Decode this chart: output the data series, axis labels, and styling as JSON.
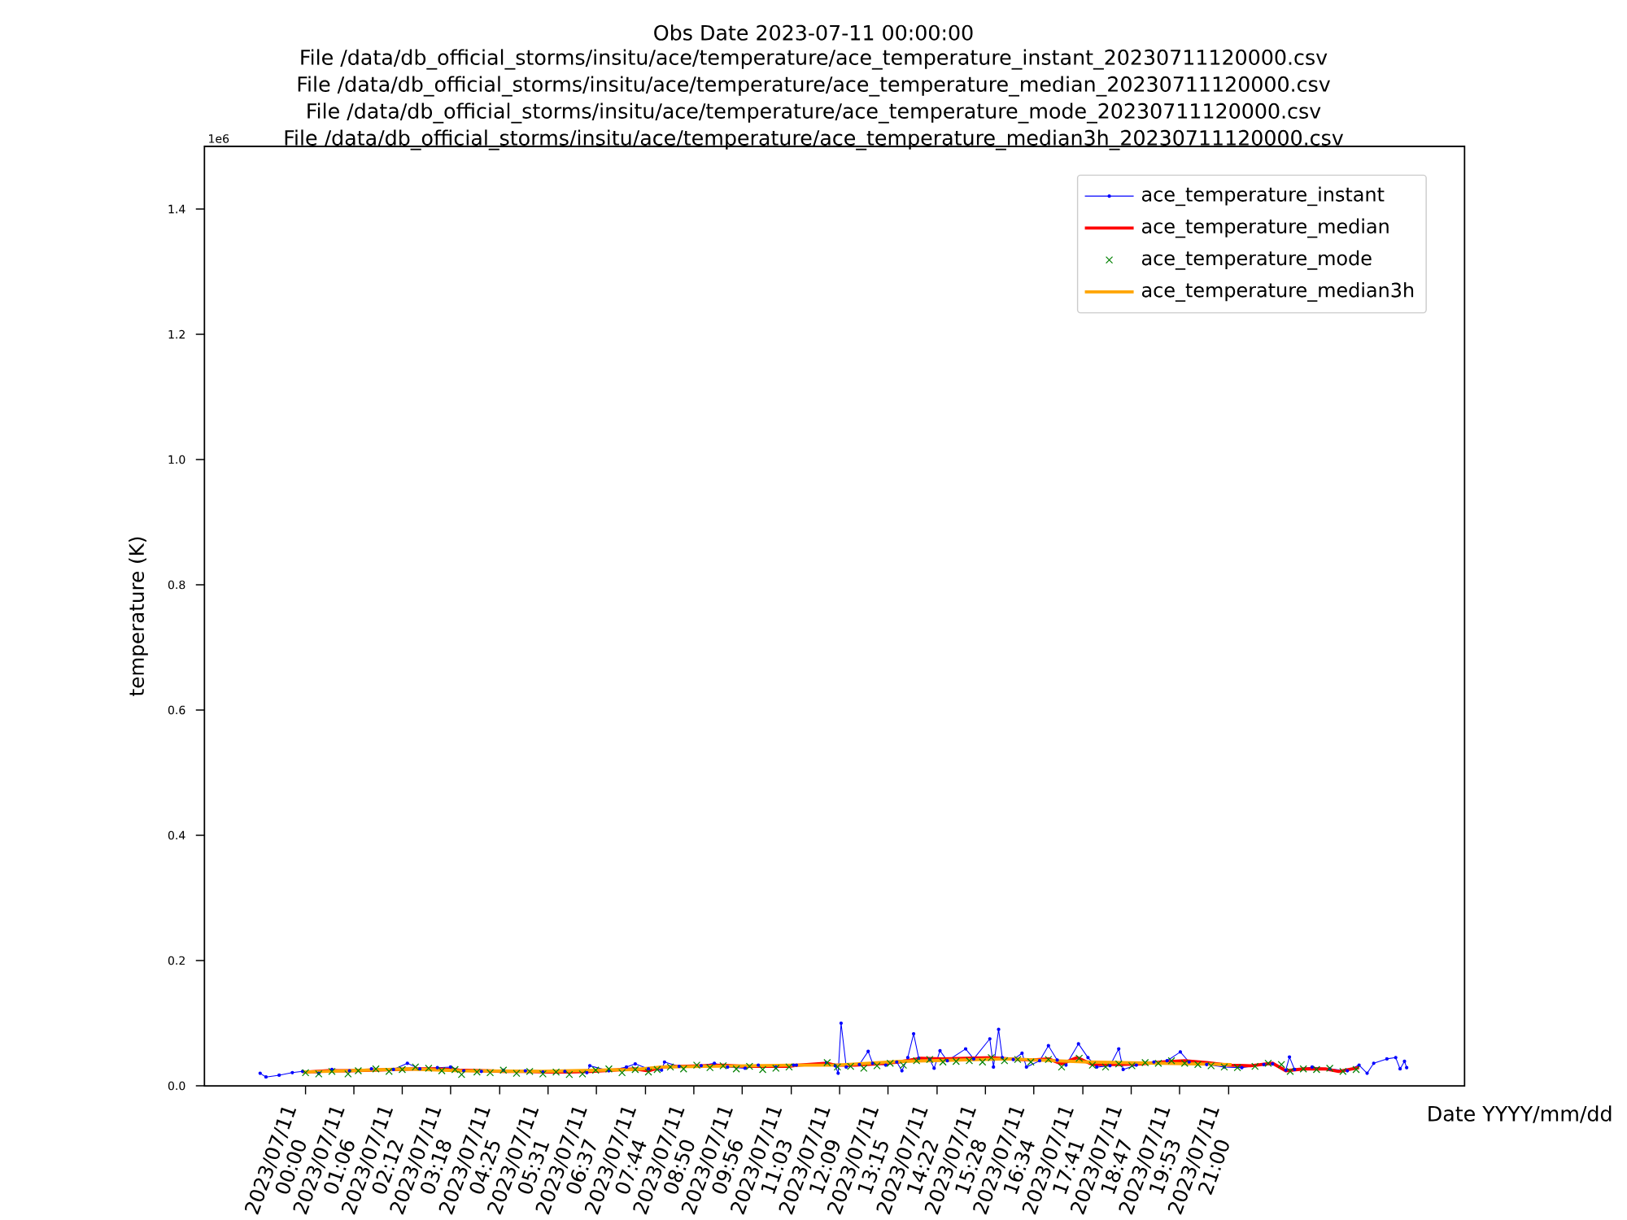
{
  "chart_data": {
    "type": "line",
    "title": "Obs Date 2023-07-11 00:00:00",
    "annotations": [
      "File /data/db_official_storms/insitu/ace/temperature/ace_temperature_instant_20230711120000.csv",
      "File /data/db_official_storms/insitu/ace/temperature/ace_temperature_median_20230711120000.csv",
      "File /data/db_official_storms/insitu/ace/temperature/ace_temperature_mode_20230711120000.csv",
      "File /data/db_official_storms/insitu/ace/temperature/ace_temperature_median3h_20230711120000.csv",
      "1e6"
    ],
    "xlabel": "Date YYYY/mm/dd",
    "ylabel": "temperature (K)",
    "xlim": [
      "2023-07-10T21:42",
      "2023-07-12T02:22"
    ],
    "ylim": [
      0,
      1.5
    ],
    "xticks": [
      {
        "value": "2023-07-11T00:00",
        "label": "2023/07/11 00:00"
      },
      {
        "value": "2023-07-11T01:06",
        "label": "2023/07/11 01:06"
      },
      {
        "value": "2023-07-11T02:12",
        "label": "2023/07/11 02:12"
      },
      {
        "value": "2023-07-11T03:18",
        "label": "2023/07/11 03:18"
      },
      {
        "value": "2023-07-11T04:25",
        "label": "2023/07/11 04:25"
      },
      {
        "value": "2023-07-11T05:31",
        "label": "2023/07/11 05:31"
      },
      {
        "value": "2023-07-11T06:37",
        "label": "2023/07/11 06:37"
      },
      {
        "value": "2023-07-11T07:44",
        "label": "2023/07/11 07:44"
      },
      {
        "value": "2023-07-11T08:50",
        "label": "2023/07/11 08:50"
      },
      {
        "value": "2023-07-11T09:56",
        "label": "2023/07/11 09:56"
      },
      {
        "value": "2023-07-11T11:03",
        "label": "2023/07/11 11:03"
      },
      {
        "value": "2023-07-11T12:09",
        "label": "2023/07/11 12:09"
      },
      {
        "value": "2023-07-11T13:15",
        "label": "2023/07/11 13:15"
      },
      {
        "value": "2023-07-11T14:22",
        "label": "2023/07/11 14:22"
      },
      {
        "value": "2023-07-11T15:28",
        "label": "2023/07/11 15:28"
      },
      {
        "value": "2023-07-11T16:34",
        "label": "2023/07/11 16:34"
      },
      {
        "value": "2023-07-11T17:41",
        "label": "2023/07/11 17:41"
      },
      {
        "value": "2023-07-11T18:47",
        "label": "2023/07/11 18:47"
      },
      {
        "value": "2023-07-11T19:53",
        "label": "2023/07/11 19:53"
      },
      {
        "value": "2023-07-11T21:00",
        "label": "2023/07/11 21:00"
      }
    ],
    "yticks": [
      {
        "value": 0,
        "label": "0.0"
      },
      0.2,
      0.4,
      0.6,
      0.8,
      {
        "value": 1,
        "label": "1.0"
      },
      1.2,
      1.4
    ],
    "legend": "top right",
    "series": [
      {
        "name": "ace_temperature_instant",
        "marker": "circle",
        "color": "#0000ff",
        "x": [
          "2023-07-10T22:58",
          "2023-07-10T23:06",
          "2023-07-10T23:24",
          "2023-07-10T23:42",
          "2023-07-10T23:56",
          "2023-07-11T00:18",
          "2023-07-11T00:36",
          "2023-07-11T01:00",
          "2023-07-11T01:30",
          "2023-07-11T02:00",
          "2023-07-11T02:19",
          "2023-07-11T02:36",
          "2023-07-11T03:00",
          "2023-07-11T03:18",
          "2023-07-11T03:36",
          "2023-07-11T04:00",
          "2023-07-11T04:30",
          "2023-07-11T05:00",
          "2023-07-11T05:24",
          "2023-07-11T05:54",
          "2023-07-11T06:24",
          "2023-07-11T06:28",
          "2023-07-11T06:54",
          "2023-07-11T07:18",
          "2023-07-11T07:30",
          "2023-07-11T07:48",
          "2023-07-11T08:06",
          "2023-07-11T08:10",
          "2023-07-11T08:30",
          "2023-07-11T09:00",
          "2023-07-11T09:18",
          "2023-07-11T09:36",
          "2023-07-11T10:00",
          "2023-07-11T10:18",
          "2023-07-11T10:42",
          "2023-07-11T11:06",
          "2023-07-11T11:10",
          "2023-07-11T11:51",
          "2023-07-11T12:03",
          "2023-07-11T12:07",
          "2023-07-11T12:11",
          "2023-07-11T12:18",
          "2023-07-11T12:36",
          "2023-07-11T12:48",
          "2023-07-11T12:54",
          "2023-07-11T13:12",
          "2023-07-11T13:27",
          "2023-07-11T13:34",
          "2023-07-11T13:42",
          "2023-07-11T13:50",
          "2023-07-11T13:57",
          "2023-07-11T14:12",
          "2023-07-11T14:18",
          "2023-07-11T14:26",
          "2023-07-11T14:36",
          "2023-07-11T15:01",
          "2023-07-11T15:12",
          "2023-07-11T15:34",
          "2023-07-11T15:39",
          "2023-07-11T15:46",
          "2023-07-11T15:51",
          "2023-07-11T16:06",
          "2023-07-11T16:18",
          "2023-07-11T16:24",
          "2023-07-11T16:42",
          "2023-07-11T16:54",
          "2023-07-11T17:06",
          "2023-07-11T17:18",
          "2023-07-11T17:35",
          "2023-07-11T17:48",
          "2023-07-11T18:00",
          "2023-07-11T18:18",
          "2023-07-11T18:30",
          "2023-07-11T18:36",
          "2023-07-11T18:54",
          "2023-07-11T19:18",
          "2023-07-11T19:36",
          "2023-07-11T19:54",
          "2023-07-11T20:06",
          "2023-07-11T20:30",
          "2023-07-11T20:54",
          "2023-07-11T21:18",
          "2023-07-11T21:48",
          "2023-07-11T22:00",
          "2023-07-11T22:18",
          "2023-07-11T22:23",
          "2023-07-11T22:30",
          "2023-07-11T22:54",
          "2023-07-11T23:18",
          "2023-07-11T23:42",
          "2023-07-11T23:58",
          "2023-07-12T00:09",
          "2023-07-12T00:18",
          "2023-07-12T00:36",
          "2023-07-12T00:48",
          "2023-07-12T00:54",
          "2023-07-12T01:00",
          "2023-07-12T01:03"
        ],
        "values": [
          0.02,
          0.014,
          0.017,
          0.021,
          0.023,
          0.02,
          0.026,
          0.024,
          0.027,
          0.026,
          0.036,
          0.027,
          0.029,
          0.03,
          0.024,
          0.023,
          0.025,
          0.024,
          0.022,
          0.023,
          0.021,
          0.032,
          0.024,
          0.03,
          0.035,
          0.027,
          0.025,
          0.038,
          0.031,
          0.032,
          0.036,
          0.03,
          0.028,
          0.033,
          0.03,
          0.033,
          0.033,
          0.037,
          0.032,
          0.02,
          0.1,
          0.03,
          0.034,
          0.055,
          0.036,
          0.033,
          0.038,
          0.024,
          0.045,
          0.083,
          0.044,
          0.042,
          0.028,
          0.056,
          0.04,
          0.059,
          0.043,
          0.075,
          0.03,
          0.09,
          0.045,
          0.042,
          0.052,
          0.03,
          0.04,
          0.064,
          0.041,
          0.033,
          0.067,
          0.045,
          0.03,
          0.032,
          0.059,
          0.026,
          0.033,
          0.038,
          0.04,
          0.054,
          0.038,
          0.034,
          0.03,
          0.029,
          0.034,
          0.035,
          0.025,
          0.046,
          0.026,
          0.03,
          0.027,
          0.024,
          0.033,
          0.02,
          0.036,
          0.043,
          0.045,
          0.027,
          0.039,
          0.029
        ]
      },
      {
        "name": "ace_temperature_median",
        "color": "#ff0000",
        "x": [
          "2023-07-11T00:00",
          "2023-07-11T00:30",
          "2023-07-11T01:00",
          "2023-07-11T01:30",
          "2023-07-11T02:00",
          "2023-07-11T02:30",
          "2023-07-11T03:00",
          "2023-07-11T03:30",
          "2023-07-11T04:00",
          "2023-07-11T04:30",
          "2023-07-11T05:00",
          "2023-07-11T05:30",
          "2023-07-11T06:00",
          "2023-07-11T06:30",
          "2023-07-11T07:00",
          "2023-07-11T07:30",
          "2023-07-11T07:48",
          "2023-07-11T08:06",
          "2023-07-11T08:30",
          "2023-07-11T09:00",
          "2023-07-11T09:30",
          "2023-07-11T10:00",
          "2023-07-11T10:30",
          "2023-07-11T11:00",
          "2023-07-11T11:12",
          "2023-07-11T11:52",
          "2023-07-11T12:03",
          "2023-07-11T12:30",
          "2023-07-11T13:00",
          "2023-07-11T13:30",
          "2023-07-11T14:00",
          "2023-07-11T14:30",
          "2023-07-11T15:00",
          "2023-07-11T15:36",
          "2023-07-11T16:00",
          "2023-07-11T16:30",
          "2023-07-11T16:54",
          "2023-07-11T17:12",
          "2023-07-11T17:33",
          "2023-07-11T17:54",
          "2023-07-11T18:30",
          "2023-07-11T19:00",
          "2023-07-11T19:30",
          "2023-07-11T20:00",
          "2023-07-11T20:30",
          "2023-07-11T21:00",
          "2023-07-11T21:30",
          "2023-07-11T22:00",
          "2023-07-11T22:18",
          "2023-07-11T22:42",
          "2023-07-11T23:12",
          "2023-07-11T23:30",
          "2023-07-11T23:58"
        ],
        "values": [
          0.022,
          0.024,
          0.024,
          0.025,
          0.026,
          0.027,
          0.027,
          0.025,
          0.024,
          0.023,
          0.023,
          0.022,
          0.022,
          0.023,
          0.025,
          0.027,
          0.024,
          0.03,
          0.031,
          0.032,
          0.033,
          0.031,
          0.031,
          0.031,
          0.033,
          0.036,
          0.033,
          0.033,
          0.035,
          0.038,
          0.044,
          0.043,
          0.044,
          0.045,
          0.043,
          0.041,
          0.043,
          0.035,
          0.045,
          0.034,
          0.034,
          0.035,
          0.038,
          0.04,
          0.037,
          0.033,
          0.032,
          0.036,
          0.024,
          0.027,
          0.027,
          0.023,
          0.029
        ]
      },
      {
        "name": "ace_temperature_mode",
        "type": "scatter",
        "marker": "cross",
        "color": "#008000",
        "x": [
          "2023-07-11T00:00",
          "2023-07-11T00:18",
          "2023-07-11T00:36",
          "2023-07-11T00:58",
          "2023-07-11T01:12",
          "2023-07-11T01:36",
          "2023-07-11T01:54",
          "2023-07-11T02:12",
          "2023-07-11T02:30",
          "2023-07-11T02:48",
          "2023-07-11T03:06",
          "2023-07-11T03:24",
          "2023-07-11T03:33",
          "2023-07-11T03:54",
          "2023-07-11T04:12",
          "2023-07-11T04:30",
          "2023-07-11T04:48",
          "2023-07-11T05:06",
          "2023-07-11T05:24",
          "2023-07-11T05:42",
          "2023-07-11T06:00",
          "2023-07-11T06:18",
          "2023-07-11T06:36",
          "2023-07-11T06:54",
          "2023-07-11T07:12",
          "2023-07-11T07:30",
          "2023-07-11T07:48",
          "2023-07-11T08:00",
          "2023-07-11T08:18",
          "2023-07-11T08:36",
          "2023-07-11T08:54",
          "2023-07-11T09:12",
          "2023-07-11T09:30",
          "2023-07-11T09:48",
          "2023-07-11T10:06",
          "2023-07-11T10:24",
          "2023-07-11T10:42",
          "2023-07-11T11:00",
          "2023-07-11T11:52",
          "2023-07-11T12:06",
          "2023-07-11T12:24",
          "2023-07-11T12:42",
          "2023-07-11T13:00",
          "2023-07-11T13:18",
          "2023-07-11T13:36",
          "2023-07-11T13:54",
          "2023-07-11T14:12",
          "2023-07-11T14:30",
          "2023-07-11T14:48",
          "2023-07-11T15:06",
          "2023-07-11T15:24",
          "2023-07-11T15:36",
          "2023-07-11T15:54",
          "2023-07-11T16:12",
          "2023-07-11T16:30",
          "2023-07-11T16:54",
          "2023-07-11T17:12",
          "2023-07-11T17:36",
          "2023-07-11T17:54",
          "2023-07-11T18:12",
          "2023-07-11T18:30",
          "2023-07-11T18:48",
          "2023-07-11T19:06",
          "2023-07-11T19:24",
          "2023-07-11T19:42",
          "2023-07-11T20:00",
          "2023-07-11T20:18",
          "2023-07-11T20:36",
          "2023-07-11T20:54",
          "2023-07-11T21:12",
          "2023-07-11T21:36",
          "2023-07-11T21:54",
          "2023-07-11T22:12",
          "2023-07-11T22:24",
          "2023-07-11T22:42",
          "2023-07-11T23:00",
          "2023-07-11T23:18",
          "2023-07-11T23:36",
          "2023-07-11T23:54"
        ],
        "values": [
          0.021,
          0.019,
          0.023,
          0.019,
          0.024,
          0.027,
          0.023,
          0.026,
          0.03,
          0.028,
          0.024,
          0.026,
          0.018,
          0.022,
          0.021,
          0.025,
          0.02,
          0.023,
          0.019,
          0.022,
          0.018,
          0.019,
          0.025,
          0.027,
          0.021,
          0.026,
          0.022,
          0.026,
          0.03,
          0.027,
          0.033,
          0.029,
          0.032,
          0.027,
          0.031,
          0.026,
          0.028,
          0.03,
          0.037,
          0.03,
          0.031,
          0.028,
          0.032,
          0.036,
          0.033,
          0.04,
          0.042,
          0.038,
          0.039,
          0.04,
          0.038,
          0.045,
          0.04,
          0.042,
          0.038,
          0.042,
          0.03,
          0.044,
          0.033,
          0.03,
          0.035,
          0.032,
          0.037,
          0.036,
          0.04,
          0.036,
          0.034,
          0.032,
          0.03,
          0.029,
          0.031,
          0.036,
          0.034,
          0.023,
          0.027,
          0.026,
          0.028,
          0.023,
          0.026
        ]
      },
      {
        "name": "ace_temperature_median3h",
        "color": "#ffa500",
        "x": [
          "2023-07-10T23:56",
          "2023-07-11T02:19",
          "2023-07-11T03:32",
          "2023-07-11T05:23",
          "2023-07-11T07:29",
          "2023-07-11T08:06",
          "2023-07-11T11:04",
          "2023-07-11T12:04",
          "2023-07-11T13:32",
          "2023-07-11T16:00",
          "2023-07-11T17:48",
          "2023-07-11T21:04"
        ],
        "values": [
          0.022,
          0.027,
          0.024,
          0.023,
          0.026,
          0.03,
          0.033,
          0.033,
          0.039,
          0.043,
          0.038,
          0.034
        ]
      }
    ]
  }
}
